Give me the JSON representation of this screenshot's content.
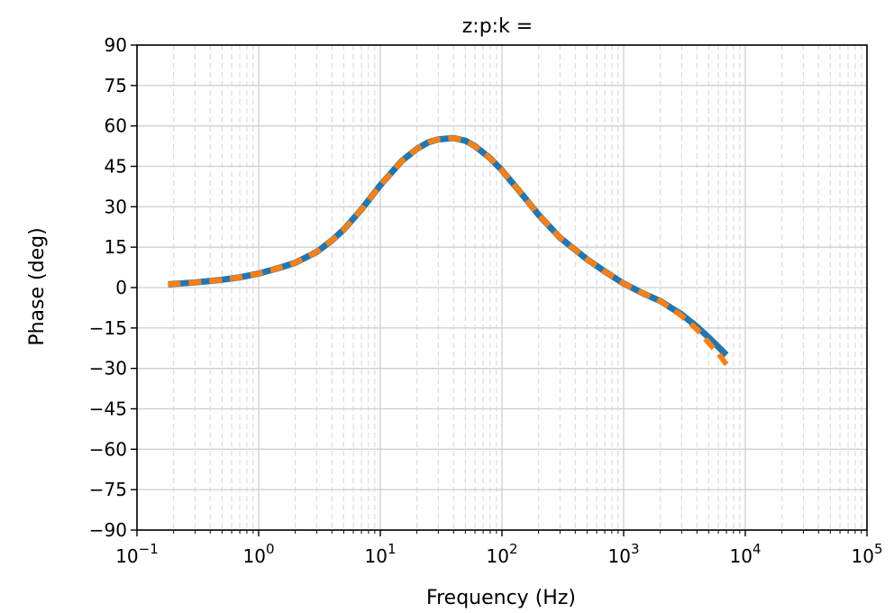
{
  "chart_data": {
    "type": "line",
    "title": "z:p:k =",
    "xlabel": "Frequency (Hz)",
    "ylabel": "Phase (deg)",
    "xscale": "log",
    "xlim": [
      0.1,
      100000
    ],
    "ylim": [
      -90,
      90
    ],
    "x_ticks": [
      {
        "value": 0.1,
        "base": "10",
        "exp": "−1"
      },
      {
        "value": 1,
        "base": "10",
        "exp": "0"
      },
      {
        "value": 10,
        "base": "10",
        "exp": "1"
      },
      {
        "value": 100,
        "base": "10",
        "exp": "2"
      },
      {
        "value": 1000,
        "base": "10",
        "exp": "3"
      },
      {
        "value": 10000,
        "base": "10",
        "exp": "4"
      },
      {
        "value": 100000,
        "base": "10",
        "exp": "5"
      }
    ],
    "y_ticks": [
      {
        "value": 90,
        "label": "90"
      },
      {
        "value": 75,
        "label": "75"
      },
      {
        "value": 60,
        "label": "60"
      },
      {
        "value": 45,
        "label": "45"
      },
      {
        "value": 30,
        "label": "30"
      },
      {
        "value": 15,
        "label": "15"
      },
      {
        "value": 0,
        "label": "0"
      },
      {
        "value": -15,
        "label": "−15"
      },
      {
        "value": -30,
        "label": "−30"
      },
      {
        "value": -45,
        "label": "−45"
      },
      {
        "value": -60,
        "label": "−60"
      },
      {
        "value": -75,
        "label": "−75"
      },
      {
        "value": -90,
        "label": "−90"
      }
    ],
    "grid": true,
    "series": [
      {
        "color": "#1f77b4",
        "style": "solid",
        "x": [
          0.18,
          0.3,
          0.5,
          0.7,
          1,
          1.5,
          2,
          3,
          4,
          5,
          7,
          10,
          15,
          20,
          25,
          30,
          40,
          50,
          60,
          80,
          100,
          150,
          200,
          300,
          500,
          700,
          1000,
          1500,
          2000,
          3000,
          4000,
          5000,
          6000,
          7000
        ],
        "y": [
          1.2,
          1.9,
          2.9,
          3.8,
          5.2,
          7.4,
          9.2,
          13.2,
          17.5,
          21.5,
          29,
          38,
          47,
          51.5,
          54,
          55,
          55.5,
          54.5,
          52.5,
          48,
          43.5,
          34,
          27,
          18.5,
          10.5,
          6,
          1.5,
          -2.5,
          -5,
          -10,
          -14.5,
          -18.5,
          -22,
          -25
        ]
      },
      {
        "color": "#ff7f0e",
        "style": "dashed",
        "x": [
          0.18,
          0.3,
          0.5,
          0.7,
          1,
          1.5,
          2,
          3,
          4,
          5,
          7,
          10,
          15,
          20,
          25,
          30,
          40,
          50,
          60,
          80,
          100,
          150,
          200,
          300,
          500,
          700,
          1000,
          1500,
          2000,
          3000,
          4000,
          5000,
          6000,
          7000
        ],
        "y": [
          1.2,
          1.9,
          2.9,
          3.8,
          5.2,
          7.4,
          9.2,
          13.2,
          17.5,
          21.5,
          29,
          38,
          47,
          51.5,
          54,
          55,
          55.5,
          54.5,
          52.5,
          48,
          43.5,
          34,
          27,
          18.5,
          10.5,
          6,
          1.5,
          -2.5,
          -5,
          -10.5,
          -15.5,
          -20.5,
          -24.5,
          -28.5
        ]
      }
    ]
  }
}
